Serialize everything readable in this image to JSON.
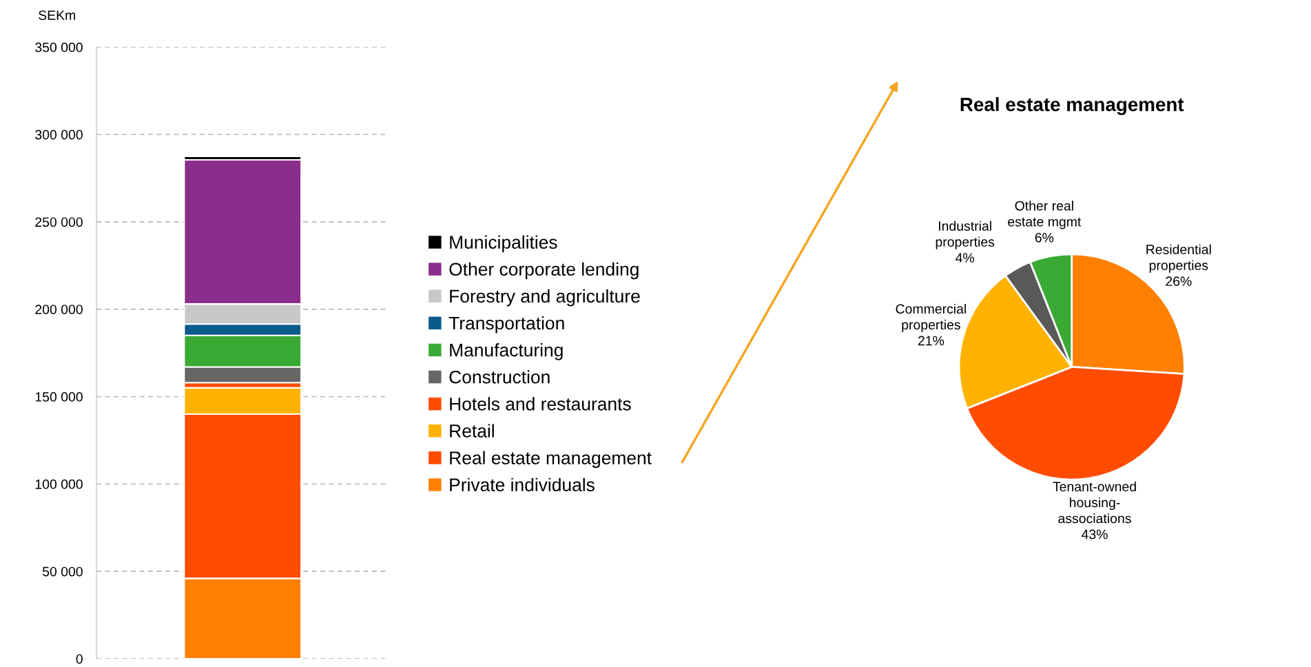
{
  "chart_data": [
    {
      "type": "bar",
      "stacked": true,
      "ylabel": "SEKm",
      "categories": [
        null
      ],
      "legend": "right",
      "grid": "y",
      "ylim": [
        0,
        350000
      ],
      "yticks": [
        {
          "value": 0,
          "label": "0"
        },
        {
          "value": 50000,
          "label": "50 000"
        },
        {
          "value": 100000,
          "label": "100 000"
        },
        {
          "value": 150000,
          "label": "150 000"
        },
        {
          "value": 200000,
          "label": "200 000"
        },
        {
          "value": 250000,
          "label": "250 000"
        },
        {
          "value": 300000,
          "label": "300 000"
        },
        {
          "value": 350000,
          "label": "350 000"
        }
      ],
      "series": [
        {
          "name": "Private individuals",
          "color": "#ff8000",
          "values": [
            46000
          ]
        },
        {
          "name": "Real estate management",
          "color": "#ff4c00",
          "values": [
            94000
          ]
        },
        {
          "name": "Retail",
          "color": "#ffb300",
          "values": [
            15000
          ]
        },
        {
          "name": "Hotels and restaurants",
          "color": "#ff4c00",
          "values": [
            3000
          ]
        },
        {
          "name": "Construction",
          "color": "#666666",
          "values": [
            9000
          ]
        },
        {
          "name": "Manufacturing",
          "color": "#3aaa35",
          "values": [
            18000
          ]
        },
        {
          "name": "Transportation",
          "color": "#0b5a8c",
          "values": [
            6500
          ]
        },
        {
          "name": "Forestry and agriculture",
          "color": "#c8c8c8",
          "values": [
            11500
          ]
        },
        {
          "name": "Other corporate lending",
          "color": "#8b2d8b",
          "values": [
            82500
          ]
        },
        {
          "name": "Municipalities",
          "color": "#000000",
          "values": [
            2000
          ]
        }
      ]
    },
    {
      "type": "pie",
      "title": "Real estate management",
      "categories": [
        "Residential\nproperties",
        "Tenant-owned\nhousing-\nassociations",
        "Commercial\nproperties",
        "Industrial\nproperties",
        "Other real\nestate mgmt"
      ],
      "values": [
        26,
        43,
        21,
        4,
        6
      ],
      "colors": [
        "#ff8000",
        "#ff4c00",
        "#ffb300",
        "#595959",
        "#3aaa35"
      ],
      "value_labels": [
        "26%",
        "43%",
        "21%",
        "4%",
        "6%"
      ]
    }
  ]
}
